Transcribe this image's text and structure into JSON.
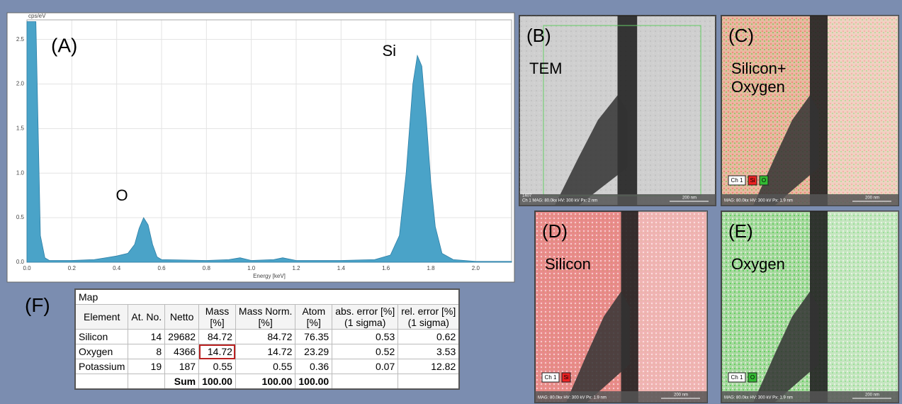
{
  "chart_data": {
    "type": "area",
    "annotation": "(A)",
    "y_label": "cps/eV",
    "x_label": "Energy [keV]",
    "peak_labels": [
      "O",
      "Si"
    ],
    "peak_x": [
      0.52,
      1.74
    ],
    "peak_y": [
      0.5,
      2.32
    ],
    "color": "#4aa3c8",
    "grid": true,
    "x": [
      0,
      0.02,
      0.04,
      0.05,
      0.06,
      0.08,
      0.1,
      0.2,
      0.3,
      0.35,
      0.4,
      0.45,
      0.48,
      0.5,
      0.52,
      0.54,
      0.56,
      0.58,
      0.6,
      0.8,
      0.9,
      0.95,
      1.0,
      1.1,
      1.14,
      1.2,
      1.4,
      1.55,
      1.62,
      1.66,
      1.69,
      1.72,
      1.74,
      1.76,
      1.78,
      1.8,
      1.82,
      1.85,
      1.9,
      2.0,
      2.16
    ],
    "values": [
      2.7,
      2.7,
      2.7,
      1.5,
      0.3,
      0.05,
      0.02,
      0.02,
      0.03,
      0.05,
      0.07,
      0.1,
      0.2,
      0.38,
      0.5,
      0.42,
      0.2,
      0.06,
      0.03,
      0.02,
      0.03,
      0.05,
      0.02,
      0.03,
      0.05,
      0.02,
      0.02,
      0.03,
      0.08,
      0.3,
      1.0,
      2.0,
      2.32,
      2.2,
      1.6,
      0.9,
      0.4,
      0.1,
      0.03,
      0.01,
      0.01
    ],
    "xlim": [
      0,
      2.16
    ],
    "ylim": [
      0,
      2.72
    ],
    "xticks": [
      {
        "value": 0,
        "label": "0.0"
      },
      0.2,
      0.4,
      0.6,
      0.8,
      {
        "value": 1,
        "label": "1.0"
      },
      1.2,
      1.4,
      1.6,
      1.8,
      {
        "value": 2,
        "label": "2.0"
      }
    ],
    "yticks": [
      {
        "value": 0,
        "label": "0.0"
      },
      0.5,
      {
        "value": 1,
        "label": "1.0"
      },
      1.5,
      {
        "value": 2,
        "label": "2.0"
      },
      2.5
    ]
  },
  "panels": [
    {
      "label": "(B)",
      "name": [
        "TEM"
      ],
      "footer": [
        "1407",
        "Ch 1    MAG: 80.0kx    HV: 300 kV    Px: 2 nm"
      ],
      "scale": "200 nm"
    },
    {
      "label": "(C)",
      "name": [
        "Silicon+",
        "Oxygen"
      ],
      "channels": [
        "Ch 1",
        "Si",
        "O"
      ],
      "footer": [
        "MAG: 80.0kx   HV: 300 kV   Px: 1.9 nm"
      ],
      "scale": "200 nm"
    },
    {
      "label": "(D)",
      "name": [
        "Silicon"
      ],
      "channels": [
        "Ch 1",
        "Si"
      ],
      "footer": [
        "MAG: 80.0kx   HV: 300 kV   Px: 1.9 nm"
      ],
      "scale": "200 nm"
    },
    {
      "label": "(E)",
      "name": [
        "Oxygen"
      ],
      "channels": [
        "Ch 1",
        "O"
      ],
      "footer": [
        "MAG: 80.0kx   HV: 300 kV   Px: 1.9 nm"
      ],
      "scale": "200 nm"
    }
  ],
  "table": {
    "label": "(F)",
    "caption": "Map",
    "header": [
      [
        "Element"
      ],
      [
        "At. No."
      ],
      [
        "Netto"
      ],
      [
        "Mass",
        "[%]"
      ],
      [
        "Mass Norm.",
        "[%]"
      ],
      [
        "Atom",
        "[%]"
      ],
      [
        "abs. error [%]",
        "(1 sigma)"
      ],
      [
        "rel. error [%]",
        "(1 sigma)"
      ]
    ],
    "rows": [
      [
        "Silicon",
        "14",
        "29682",
        "84.72",
        "84.72",
        "76.35",
        "0.53",
        "0.62"
      ],
      [
        "Oxygen",
        "8",
        "4366",
        "14.72",
        "14.72",
        "23.29",
        "0.52",
        "3.53"
      ],
      [
        "Potassium",
        "19",
        "187",
        "0.55",
        "0.55",
        "0.36",
        "0.07",
        "12.82"
      ]
    ],
    "sum_row": {
      "label": "Sum",
      "mass": "100.00",
      "mass_norm": "100.00",
      "atom": "100.00"
    }
  }
}
